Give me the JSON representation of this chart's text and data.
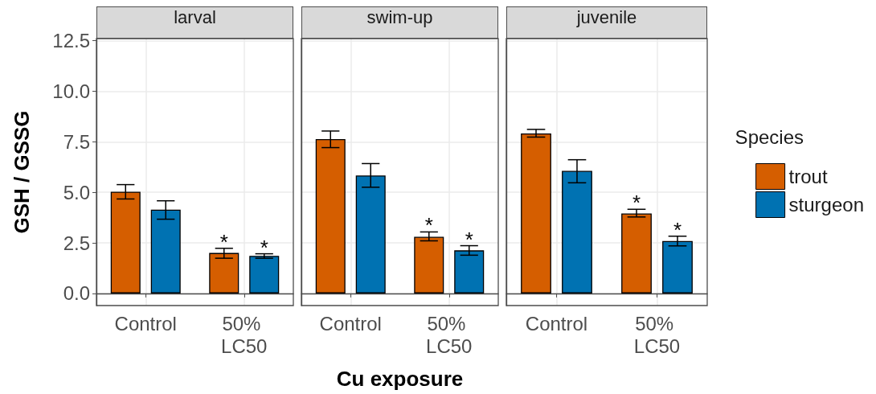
{
  "chart_data": [
    {
      "type": "bar",
      "title": "larval",
      "ylabel": "GSH / GSSG",
      "categories": [
        "Control",
        "50% LC50"
      ],
      "series": [
        {
          "color": "#d55e00",
          "values": [
            5.03,
            2.0
          ],
          "errors": [
            [
              4.67,
              5.38
            ],
            [
              1.74,
              2.23
            ]
          ]
        },
        {
          "color": "#0072b2",
          "values": [
            4.14,
            1.86
          ],
          "errors": [
            [
              3.67,
              4.58
            ],
            [
              1.74,
              1.96
            ]
          ]
        }
      ],
      "annotations": [
        "*",
        "*"
      ],
      "ylim": [
        -0.6,
        12.6
      ],
      "yticks": [
        {
          "value": 0,
          "label": "0.0"
        },
        {
          "value": 2.5,
          "label": "2.5"
        },
        {
          "value": 5,
          "label": "5.0"
        },
        {
          "value": 7.5,
          "label": "7.5"
        },
        {
          "value": 10,
          "label": "10.0"
        },
        {
          "value": 12.5,
          "label": "12.5"
        }
      ],
      "grid": true,
      "legend": false
    },
    {
      "type": "bar",
      "title": "swim-up",
      "xlabel": "Cu exposure",
      "categories": [
        "Control",
        "50% LC50"
      ],
      "series": [
        {
          "color": "#d55e00",
          "values": [
            7.63,
            2.8
          ],
          "errors": [
            [
              7.21,
              8.03
            ],
            [
              2.6,
              3.04
            ]
          ]
        },
        {
          "color": "#0072b2",
          "values": [
            5.83,
            2.13
          ],
          "errors": [
            [
              5.25,
              6.42
            ],
            [
              1.89,
              2.36
            ]
          ]
        }
      ],
      "annotations": [
        "*",
        "*"
      ],
      "ylim": [
        -0.6,
        12.6
      ],
      "yticks": [
        0,
        2.5,
        5,
        7.5,
        10,
        12.5
      ],
      "tick_labels": "x",
      "grid": true,
      "legend": false
    },
    {
      "type": "bar",
      "title": "juvenile",
      "legend_title": "Species",
      "categories": [
        "Control",
        "50% LC50"
      ],
      "series": [
        {
          "name": "trout",
          "color": "#d55e00",
          "values": [
            7.91,
            3.95
          ],
          "errors": [
            [
              7.73,
              8.11
            ],
            [
              3.78,
              4.16
            ]
          ]
        },
        {
          "name": "sturgeon",
          "color": "#0072b2",
          "values": [
            6.06,
            2.59
          ],
          "errors": [
            [
              5.47,
              6.61
            ],
            [
              2.35,
              2.83
            ]
          ]
        }
      ],
      "annotations": [
        "*",
        "*"
      ],
      "ylim": [
        -0.6,
        12.6
      ],
      "yticks": [
        0,
        2.5,
        5,
        7.5,
        10,
        12.5
      ],
      "tick_labels": "x",
      "grid": true,
      "legend": "right"
    }
  ]
}
